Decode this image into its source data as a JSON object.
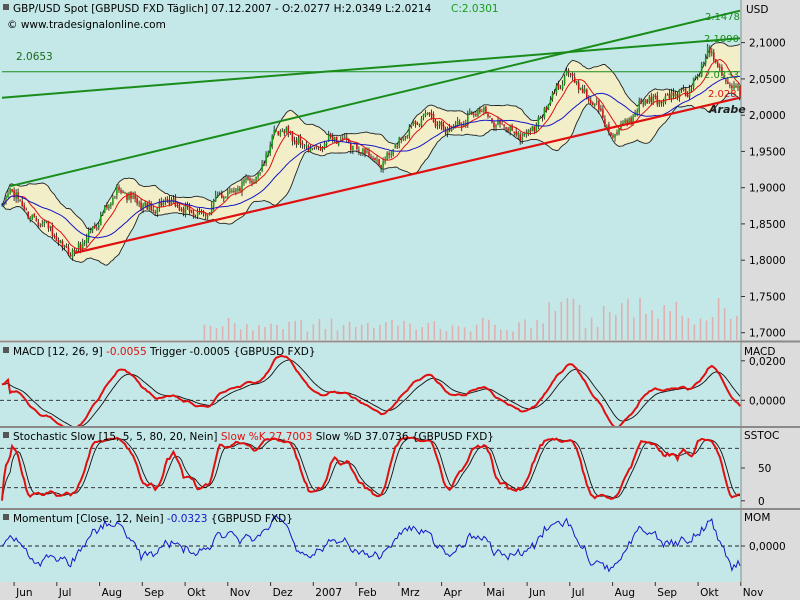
{
  "header": {
    "title": "GBP/USD Spot [GBPUSD FXD  Täglich] 07.12.2007 - O:2.0277 H:2.0349 L:2.0214",
    "close": "C:2.0301",
    "url": "© www.tradesignalonline.com"
  },
  "colors": {
    "panel_bg": "#c4e8e8",
    "axis_bg": "#dcdcdc",
    "bollinger_fill": "#f2efc8",
    "green_line": "#1a8c1a",
    "red_line": "#e01010",
    "blue_line": "#1515c8",
    "black_line": "#111111",
    "volume": "#e0b0b0"
  },
  "price_axis": {
    "unit": "USD",
    "ticks": [
      "2,1000",
      "2,0500",
      "2,0000",
      "1,9500",
      "1,9000",
      "1,8500",
      "1,8000",
      "1,7500",
      "1,7000"
    ],
    "tick_values": [
      2.1,
      2.05,
      2.0,
      1.95,
      1.9,
      1.85,
      1.8,
      1.75,
      1.7
    ],
    "ylim": [
      1.69,
      2.156
    ]
  },
  "price_annotations": {
    "level_2_0653": "2.0653",
    "level_2_1478": "2.1478",
    "level_2_1090": "2.1090",
    "level_2_0333": "2.0333",
    "level_2_0281": "2.028",
    "arabesque": "Arabe"
  },
  "panels": {
    "macd": {
      "label": "MACD [12, 26, 9] ",
      "value": "-0.0055",
      "label2": " Trigger ",
      "value2": "-0.0005",
      "label3": " {GBPUSD FXD}",
      "axis_title": "MACD",
      "ticks": [
        "0,0200",
        "0,0000"
      ],
      "tick_values": [
        0.02,
        0.0
      ],
      "ylim": [
        -0.012,
        0.028
      ]
    },
    "stochastic": {
      "label": "Stochastic Slow [15, 5, 5, 80, 20, Nein] ",
      "value": "Slow %K 27.7003",
      "label2": " Slow %D 37.0736 {GBPUSD FXD}",
      "axis_title": "SSTOC",
      "ticks": [
        "50",
        "0"
      ],
      "tick_values": [
        50,
        0
      ],
      "ylim": [
        -8,
        108
      ],
      "levels": [
        80,
        20
      ]
    },
    "momentum": {
      "label": "Momentum [Close, 12, Nein] ",
      "value": "-0.0323",
      "label2": " {GBPUSD FXD}",
      "axis_title": "MOM",
      "ticks": [
        "0,0000"
      ],
      "tick_values": [
        0.0
      ],
      "ylim": [
        -0.08,
        0.08
      ]
    }
  },
  "x_axis": {
    "labels": [
      "Jun",
      "Jul",
      "Aug",
      "Sep",
      "Okt",
      "Nov",
      "Dez",
      "2007",
      "Feb",
      "Mrz",
      "Apr",
      "Mai",
      "Jun",
      "Jul",
      "Aug",
      "Sep",
      "Okt",
      "Nov"
    ]
  },
  "chart_data": {
    "type": "line",
    "instrument": "GBP/USD Spot",
    "period": "daily",
    "x_ticks": [
      "Jun",
      "Jul",
      "Aug",
      "Sep",
      "Okt",
      "Nov",
      "Dez",
      "2007",
      "Feb",
      "Mrz",
      "Apr",
      "Mai",
      "Jun",
      "Jul",
      "Aug",
      "Sep",
      "Okt",
      "Nov"
    ],
    "price": {
      "ylim": [
        1.69,
        2.156
      ],
      "close_anchors": [
        [
          0,
          1.87
        ],
        [
          4,
          1.9
        ],
        [
          14,
          1.86
        ],
        [
          22,
          1.85
        ],
        [
          28,
          1.82
        ],
        [
          36,
          1.81
        ],
        [
          44,
          1.84
        ],
        [
          52,
          1.87
        ],
        [
          58,
          1.9
        ],
        [
          66,
          1.88
        ],
        [
          74,
          1.87
        ],
        [
          82,
          1.88
        ],
        [
          90,
          1.87
        ],
        [
          100,
          1.86
        ],
        [
          108,
          1.89
        ],
        [
          118,
          1.9
        ],
        [
          128,
          1.92
        ],
        [
          134,
          1.97
        ],
        [
          140,
          1.98
        ],
        [
          148,
          1.96
        ],
        [
          156,
          1.95
        ],
        [
          164,
          1.97
        ],
        [
          172,
          1.96
        ],
        [
          180,
          1.95
        ],
        [
          188,
          1.93
        ],
        [
          196,
          1.96
        ],
        [
          204,
          1.99
        ],
        [
          212,
          2.0
        ],
        [
          220,
          1.98
        ],
        [
          228,
          1.99
        ],
        [
          236,
          2.01
        ],
        [
          244,
          1.99
        ],
        [
          252,
          1.98
        ],
        [
          258,
          1.97
        ],
        [
          266,
          1.99
        ],
        [
          274,
          2.03
        ],
        [
          280,
          2.06
        ],
        [
          286,
          2.04
        ],
        [
          292,
          2.02
        ],
        [
          296,
          2.01
        ],
        [
          302,
          1.97
        ],
        [
          310,
          1.99
        ],
        [
          318,
          2.02
        ],
        [
          326,
          2.02
        ],
        [
          334,
          2.03
        ],
        [
          340,
          2.03
        ],
        [
          346,
          2.06
        ],
        [
          350,
          2.09
        ],
        [
          354,
          2.08
        ],
        [
          358,
          2.05
        ],
        [
          362,
          2.04
        ],
        [
          366,
          2.03
        ]
      ],
      "trendlines": [
        {
          "name": "red",
          "points": [
            [
              36,
              1.81
            ],
            [
              366,
              2.024
            ]
          ]
        },
        {
          "name": "green_upper",
          "points": [
            [
              4,
              1.902
            ],
            [
              366,
              2.144
            ]
          ]
        },
        {
          "name": "green_lower",
          "points": [
            [
              0,
              2.024
            ],
            [
              366,
              2.106
            ]
          ]
        },
        {
          "name": "level",
          "points": [
            [
              0,
              2.0598
            ],
            [
              366,
              2.0598
            ]
          ]
        }
      ]
    },
    "macd": {
      "ylim": [
        -0.012,
        0.028
      ],
      "zero": 0.0
    },
    "stochastic": {
      "ylim": [
        -8,
        108
      ],
      "levels": [
        80,
        20
      ]
    },
    "momentum": {
      "ylim": [
        -0.08,
        0.08
      ],
      "zero": 0.0
    }
  }
}
